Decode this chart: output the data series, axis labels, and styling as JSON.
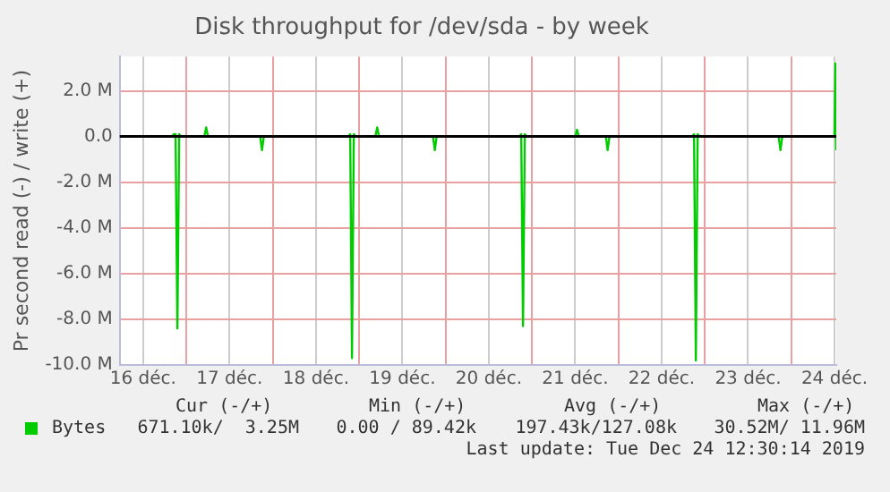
{
  "chart_data": {
    "type": "line",
    "title": "Disk throughput for /dev/sda - by week",
    "ylabel": "Pr second read (-) / write (+)",
    "x": [
      "2019-12-16T05:30",
      "2019-12-16T20:00",
      "2019-12-16T20:30",
      "2019-12-16T21:00",
      "2019-12-16T21:30",
      "2019-12-16T22:00",
      "2019-12-16T22:30",
      "2019-12-17T05:00",
      "2019-12-17T05:30",
      "2019-12-17T06:00",
      "2019-12-17T20:30",
      "2019-12-17T21:00",
      "2019-12-17T21:30",
      "2019-12-18T21:00",
      "2019-12-18T21:30",
      "2019-12-18T22:00",
      "2019-12-18T22:30",
      "2019-12-18T23:00",
      "2019-12-19T04:30",
      "2019-12-19T05:00",
      "2019-12-19T05:30",
      "2019-12-19T20:30",
      "2019-12-19T21:00",
      "2019-12-19T21:30",
      "2019-12-20T20:30",
      "2019-12-20T21:00",
      "2019-12-20T21:30",
      "2019-12-20T22:00",
      "2019-12-20T22:30",
      "2019-12-21T12:00",
      "2019-12-21T12:30",
      "2019-12-21T13:00",
      "2019-12-21T20:30",
      "2019-12-21T21:00",
      "2019-12-21T21:30",
      "2019-12-22T20:30",
      "2019-12-22T21:00",
      "2019-12-22T21:30",
      "2019-12-22T22:00",
      "2019-12-22T22:30",
      "2019-12-23T20:30",
      "2019-12-23T21:00",
      "2019-12-23T21:30",
      "2019-12-24T12:00",
      "2019-12-24T12:15",
      "2019-12-24T12:30"
    ],
    "series": [
      {
        "name": "Bytes",
        "color": "#00cc00",
        "values": [
          0,
          0,
          0.1,
          0.1,
          -8.4,
          0.1,
          0,
          0,
          0.4,
          0,
          0,
          -0.6,
          0,
          0,
          0.1,
          -9.7,
          0.1,
          0,
          0,
          0.4,
          0,
          0,
          -0.6,
          0,
          0,
          0.1,
          -8.3,
          0.1,
          0,
          0,
          0.3,
          0,
          0,
          -0.6,
          0,
          0,
          0.1,
          -9.8,
          0.1,
          0,
          0,
          -0.6,
          0,
          0,
          3.2,
          -0.6
        ]
      }
    ],
    "xlim": [
      "2019-12-16T05:30",
      "2019-12-24T12:30"
    ],
    "xticks": [
      {
        "value": "2019-12-16T12:00",
        "label": "16 déc."
      },
      {
        "value": "2019-12-17T00:00",
        "label": null
      },
      {
        "value": "2019-12-17T12:00",
        "label": "17 déc."
      },
      {
        "value": "2019-12-18T00:00",
        "label": null
      },
      {
        "value": "2019-12-18T12:00",
        "label": "18 déc."
      },
      {
        "value": "2019-12-19T00:00",
        "label": null
      },
      {
        "value": "2019-12-19T12:00",
        "label": "19 déc."
      },
      {
        "value": "2019-12-20T00:00",
        "label": null
      },
      {
        "value": "2019-12-20T12:00",
        "label": "20 déc."
      },
      {
        "value": "2019-12-21T00:00",
        "label": null
      },
      {
        "value": "2019-12-21T12:00",
        "label": "21 déc."
      },
      {
        "value": "2019-12-22T00:00",
        "label": null
      },
      {
        "value": "2019-12-22T12:00",
        "label": "22 déc."
      },
      {
        "value": "2019-12-23T00:00",
        "label": null
      },
      {
        "value": "2019-12-23T12:00",
        "label": "23 déc."
      },
      {
        "value": "2019-12-24T00:00",
        "label": null
      },
      {
        "value": "2019-12-24T12:00",
        "label": "24 déc."
      }
    ],
    "ylim": [
      -10,
      3.5
    ],
    "yticks": [
      {
        "value": 2,
        "label": "2.0 M"
      },
      {
        "value": 0,
        "label": "0.0"
      },
      {
        "value": -2,
        "label": "-2.0 M"
      },
      {
        "value": -4,
        "label": "-4.0 M"
      },
      {
        "value": -6,
        "label": "-6.0 M"
      },
      {
        "value": -8,
        "label": "-8.0 M"
      },
      {
        "value": -10,
        "label": "-10.0 M"
      }
    ],
    "ref_lines": [
      {
        "axis": "y",
        "value": 0,
        "color": "#000000"
      }
    ],
    "grid": true,
    "legend": "bottom left",
    "marker": "none",
    "line_style": "solid",
    "annotations": [
      "Cur (-/+)",
      "Min (-/+)",
      "Avg (-/+)",
      "Max (-/+)",
      "671.10k/  3.25M",
      "0.00 / 89.42k",
      "197.43k/127.08k",
      "30.52M/ 11.96M",
      "Last update: Tue Dec 24 12:30:14 2019"
    ]
  }
}
